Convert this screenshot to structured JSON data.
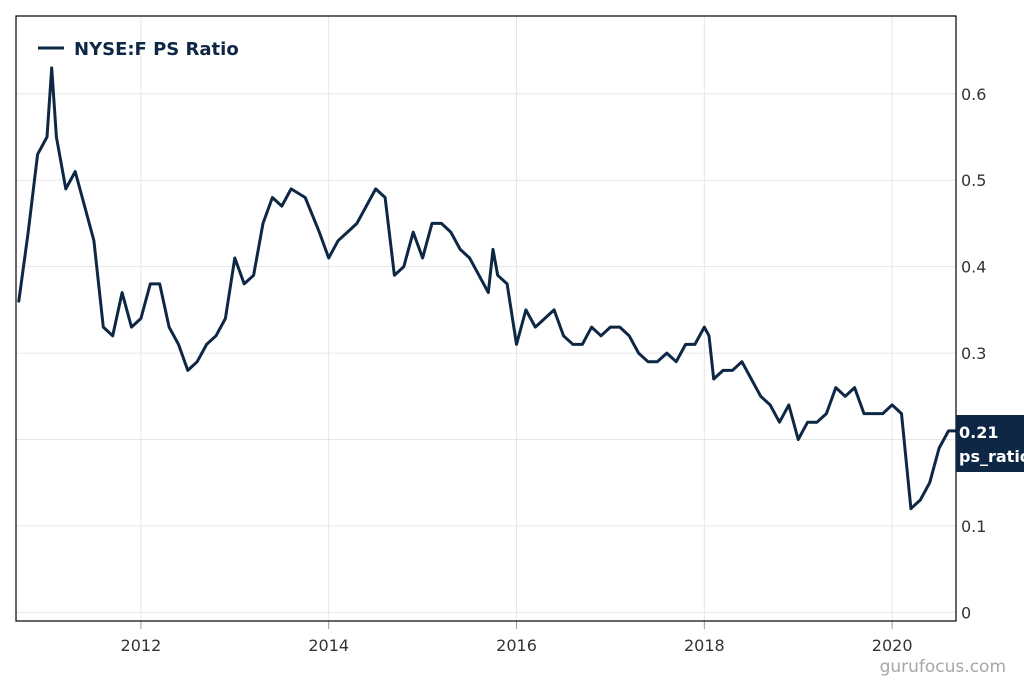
{
  "chart_data": {
    "type": "line",
    "series": [
      {
        "name": "NYSE:F PS Ratio",
        "color": "#0e2744",
        "x": [
          2010.7,
          2010.8,
          2010.9,
          2011.0,
          2011.05,
          2011.1,
          2011.2,
          2011.3,
          2011.4,
          2011.5,
          2011.6,
          2011.7,
          2011.8,
          2011.9,
          2012.0,
          2012.1,
          2012.2,
          2012.3,
          2012.4,
          2012.5,
          2012.6,
          2012.7,
          2012.8,
          2012.9,
          2013.0,
          2013.1,
          2013.2,
          2013.3,
          2013.4,
          2013.5,
          2013.6,
          2013.75,
          2013.9,
          2014.0,
          2014.1,
          2014.2,
          2014.3,
          2014.4,
          2014.5,
          2014.6,
          2014.7,
          2014.8,
          2014.9,
          2015.0,
          2015.1,
          2015.2,
          2015.3,
          2015.4,
          2015.5,
          2015.6,
          2015.7,
          2015.75,
          2015.8,
          2015.9,
          2016.0,
          2016.1,
          2016.2,
          2016.3,
          2016.4,
          2016.5,
          2016.6,
          2016.7,
          2016.8,
          2016.9,
          2017.0,
          2017.1,
          2017.2,
          2017.3,
          2017.4,
          2017.5,
          2017.6,
          2017.7,
          2017.8,
          2017.9,
          2018.0,
          2018.05,
          2018.1,
          2018.2,
          2018.3,
          2018.4,
          2018.5,
          2018.6,
          2018.7,
          2018.8,
          2018.9,
          2019.0,
          2019.1,
          2019.2,
          2019.3,
          2019.4,
          2019.5,
          2019.6,
          2019.7,
          2019.8,
          2019.9,
          2020.0,
          2020.1,
          2020.2,
          2020.3,
          2020.4,
          2020.5,
          2020.6,
          2020.68
        ],
        "y": [
          0.36,
          0.44,
          0.53,
          0.55,
          0.63,
          0.55,
          0.49,
          0.51,
          0.47,
          0.43,
          0.33,
          0.32,
          0.37,
          0.33,
          0.34,
          0.38,
          0.38,
          0.33,
          0.31,
          0.28,
          0.29,
          0.31,
          0.32,
          0.34,
          0.41,
          0.38,
          0.39,
          0.45,
          0.48,
          0.47,
          0.49,
          0.48,
          0.44,
          0.41,
          0.43,
          0.44,
          0.45,
          0.47,
          0.49,
          0.48,
          0.39,
          0.4,
          0.44,
          0.41,
          0.45,
          0.45,
          0.44,
          0.42,
          0.41,
          0.39,
          0.37,
          0.42,
          0.39,
          0.38,
          0.31,
          0.35,
          0.33,
          0.34,
          0.35,
          0.32,
          0.31,
          0.31,
          0.33,
          0.32,
          0.33,
          0.33,
          0.32,
          0.3,
          0.29,
          0.29,
          0.3,
          0.29,
          0.31,
          0.31,
          0.33,
          0.32,
          0.27,
          0.28,
          0.28,
          0.29,
          0.27,
          0.25,
          0.24,
          0.22,
          0.24,
          0.2,
          0.22,
          0.22,
          0.23,
          0.26,
          0.25,
          0.26,
          0.23,
          0.23,
          0.23,
          0.24,
          0.23,
          0.12,
          0.13,
          0.15,
          0.19,
          0.21,
          0.21
        ]
      }
    ],
    "x_ticks": [
      "2012",
      "2014",
      "2016",
      "2018",
      "2020"
    ],
    "y_ticks": [
      "0",
      "0.1",
      "0.2",
      "0.3",
      "0.4",
      "0.5",
      "0.6"
    ],
    "xlim": [
      2010.67,
      2020.68
    ],
    "ylim": [
      -0.01,
      0.69
    ],
    "y_axis_side": "right",
    "grid": true,
    "legend": {
      "label": "NYSE:F PS Ratio",
      "position": "top-left"
    },
    "last_value": {
      "value": "0.21",
      "label": "ps_ratio"
    },
    "watermark": "gurufocus.com"
  }
}
